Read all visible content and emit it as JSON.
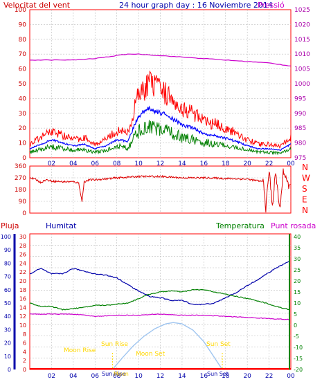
{
  "title": "24 hour graph day : 16 Noviembre 2014",
  "panels": {
    "top": {
      "left_label": "Velocitat del vent",
      "right_label": "Pressió",
      "left_ticks": [
        "100",
        "90",
        "80",
        "70",
        "60",
        "50",
        "40",
        "30",
        "20",
        "10",
        "0"
      ],
      "right_ticks": [
        "1025",
        "1020",
        "1015",
        "1010",
        "1005",
        "1000",
        "995",
        "990",
        "985",
        "980",
        "975"
      ]
    },
    "dir": {
      "left_ticks": [
        "360",
        "270",
        "180",
        "90",
        "0"
      ],
      "right_letters": [
        "N",
        "W",
        "S",
        "E",
        "N"
      ]
    },
    "bottom": {
      "labels": {
        "pluja": "Pluja",
        "humitat": "Humitat",
        "temperatura": "Temperatura",
        "punt_rosada": "Punt rosada"
      },
      "rain_ticks": [
        "30",
        "28",
        "26",
        "24",
        "22",
        "20",
        "18",
        "16",
        "14",
        "12",
        "10",
        "8",
        "6",
        "4",
        "2",
        "0"
      ],
      "hum_ticks": [
        "100",
        "90",
        "80",
        "70",
        "60",
        "50",
        "40",
        "30",
        "20",
        "10",
        "0"
      ],
      "temp_ticks": [
        "40",
        "35",
        "30",
        "25",
        "20",
        "15",
        "10",
        "5",
        "0",
        "-5",
        "-10",
        "-15",
        "-20"
      ],
      "astro": {
        "sunrise": "Sun Rise",
        "sunset": "Sun Set",
        "moonrise": "Moon Rise",
        "moonset": "Moon Set",
        "sunrise_foot": "Sun Rise",
        "sunset_foot": "Sun Set",
        "moon_foot": "Moon"
      }
    }
  },
  "x_ticks": [
    "02",
    "04",
    "06",
    "08",
    "10",
    "12",
    "14",
    "16",
    "18",
    "20",
    "22",
    "00"
  ],
  "colors": {
    "frame": "#ff0000",
    "grid": "#bdbdbd",
    "gust": "#ff0000",
    "wind": "#0000ff",
    "wind_min": "#008000",
    "pressure": "#cc00cc",
    "direction": "#dd0000",
    "humidity": "#0000aa",
    "temperature": "#008000",
    "dewpoint": "#cc00cc",
    "moon_arc": "#9fc5f0",
    "astro": "#ffd700",
    "rain": "#ff0000",
    "left_axis_text": "#cc0000",
    "hum_axis": "#0000aa",
    "temp_axis": "#008000",
    "pressure_axis": "#aa00aa"
  },
  "chart_data": [
    {
      "type": "line",
      "title": "24 hour graph day : 16 Noviembre 2014",
      "xlabel": "",
      "x_range": [
        0,
        24
      ],
      "ylim_left": [
        0,
        100
      ],
      "ylim_right": [
        975,
        1025
      ],
      "series": [
        {
          "name": "Velocitat del vent",
          "axis": "left",
          "x": [
            0,
            1,
            2,
            3,
            4,
            5,
            6,
            7,
            8,
            9,
            10,
            11,
            12,
            13,
            14,
            15,
            16,
            17,
            18,
            19,
            20,
            21,
            22,
            23,
            24
          ],
          "values": [
            6,
            9,
            12,
            10,
            8,
            9,
            6,
            8,
            12,
            11,
            28,
            33,
            30,
            27,
            22,
            20,
            16,
            15,
            13,
            11,
            8,
            6,
            6,
            5,
            9
          ]
        },
        {
          "name": "Pressió",
          "axis": "right",
          "x": [
            0,
            2,
            4,
            6,
            8,
            9,
            10,
            12,
            14,
            16,
            18,
            20,
            22,
            24
          ],
          "values": [
            1008,
            1008,
            1008,
            1008.5,
            1009.5,
            1010,
            1010,
            1009.5,
            1009,
            1008.5,
            1008,
            1007.5,
            1007,
            1006
          ]
        }
      ]
    },
    {
      "type": "line",
      "ylim": [
        0,
        360
      ],
      "series": [
        {
          "name": "",
          "x": [
            0,
            0.5,
            1,
            1.5,
            2,
            3,
            4,
            4.5,
            4.8,
            5,
            5.5,
            6,
            8,
            10,
            12,
            14,
            16,
            18,
            20,
            21.5,
            21.7,
            22,
            22.3,
            22.6,
            23,
            23.3,
            23.6,
            24
          ],
          "values": [
            270,
            260,
            235,
            255,
            245,
            240,
            240,
            230,
            90,
            240,
            255,
            255,
            270,
            280,
            280,
            270,
            270,
            265,
            260,
            240,
            30,
            330,
            60,
            310,
            20,
            330,
            240,
            190
          ]
        }
      ]
    },
    {
      "type": "line",
      "x_range": [
        0,
        24
      ],
      "ylim_humidity": [
        0,
        100
      ],
      "ylim_temperature": [
        -20,
        40
      ],
      "ylim_rain": [
        0,
        30
      ],
      "series": [
        {
          "name": "Humitat",
          "axis": "humidity",
          "x": [
            0,
            1,
            2,
            3,
            4,
            5,
            6,
            7,
            8,
            9,
            10,
            11,
            12,
            13,
            14,
            15,
            16,
            17,
            18,
            19,
            20,
            21,
            22,
            23,
            24
          ],
          "values": [
            72,
            76,
            72,
            72,
            76,
            74,
            72,
            71,
            69,
            64,
            59,
            55,
            54,
            52,
            52,
            49,
            49,
            50,
            54,
            58,
            63,
            68,
            73,
            78,
            82
          ]
        },
        {
          "name": "Temperatura",
          "axis": "temperature",
          "x": [
            0,
            1,
            2,
            3,
            4,
            5,
            6,
            7,
            8,
            9,
            10,
            11,
            12,
            13,
            14,
            15,
            16,
            17,
            18,
            19,
            20,
            21,
            22,
            23,
            24
          ],
          "values": [
            10,
            8.5,
            8.5,
            7,
            7.5,
            8,
            9,
            9,
            9.5,
            10,
            12,
            14,
            15,
            15.5,
            15,
            16,
            16,
            15,
            14,
            13,
            12,
            11,
            9.5,
            8,
            7
          ]
        },
        {
          "name": "Punt rosada",
          "axis": "temperature",
          "x": [
            0,
            2,
            4,
            6,
            8,
            10,
            12,
            14,
            16,
            18,
            20,
            22,
            24
          ],
          "values": [
            5,
            5,
            5,
            4,
            4.5,
            4.5,
            5,
            4.5,
            4.5,
            4,
            3.5,
            3,
            2.5
          ]
        },
        {
          "name": "Pluja",
          "axis": "rain",
          "x": [
            0,
            24
          ],
          "values": [
            0,
            0
          ]
        },
        {
          "name": "Moon",
          "axis": "rain",
          "x": [
            7.6,
            8.5,
            9.5,
            10.5,
            11.5,
            12.5,
            13.2,
            14,
            15,
            16,
            17,
            17.7
          ],
          "values": [
            0,
            2.6,
            5.3,
            7.5,
            9.2,
            10.3,
            10.6,
            10.3,
            8.9,
            6.3,
            2.6,
            0
          ]
        }
      ],
      "astro_hours": {
        "sunrise": 7.6,
        "sunset": 17.7,
        "moonrise": 0.4,
        "moonset": 13.2
      }
    }
  ]
}
